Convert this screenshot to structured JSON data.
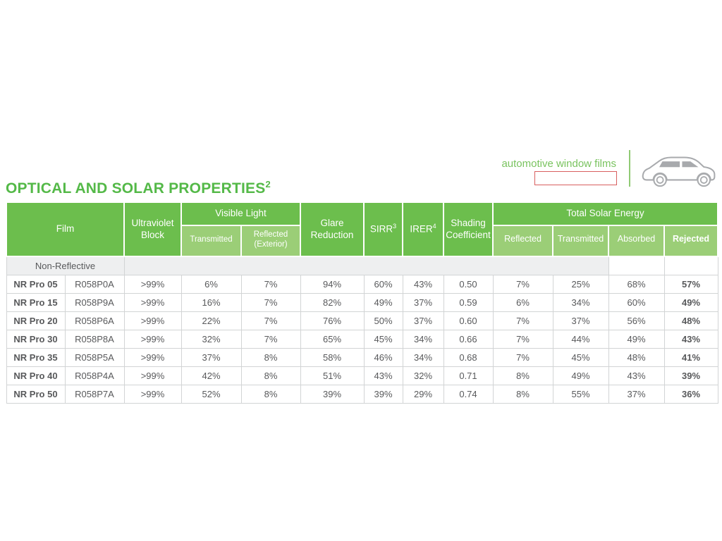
{
  "title": {
    "text": "OPTICAL AND SOLAR PROPERTIES",
    "superscript": "2"
  },
  "brand": {
    "tagline": "automotive window films",
    "car_icon": "car-side-icon",
    "redacted_box": ""
  },
  "colors": {
    "header_green": "#6cbe4d",
    "subheader_green": "#9bce77",
    "title_green": "#54b948",
    "tagline_green": "#79c35f",
    "section_gray": "#eeeff0",
    "border_gray": "#d2d4d5",
    "redacted_border_red": "#d85f5f"
  },
  "table": {
    "header": {
      "film": "Film",
      "ultraviolet_block": "Ultraviolet Block",
      "visible_light": "Visible Light",
      "vl_transmitted": "Transmitted",
      "vl_reflected": "Reflected (Exterior)",
      "glare_reduction": "Glare Reduction",
      "sirr": "SIRR",
      "sirr_sup": "3",
      "irer": "IRER",
      "irer_sup": "4",
      "shading_coefficient": "Shading Coefficient",
      "total_solar_energy": "Total Solar Energy",
      "tse_reflected": "Reflected",
      "tse_transmitted": "Transmitted",
      "tse_absorbed": "Absorbed",
      "tse_rejected": "Rejected"
    },
    "section_label": "Non-Reflective",
    "column_keys": [
      "name",
      "code",
      "uv_block",
      "vl_transmitted",
      "vl_reflected",
      "glare_reduction",
      "sirr",
      "irer",
      "shading_coefficient",
      "tse_reflected",
      "tse_transmitted",
      "tse_absorbed",
      "tse_rejected"
    ],
    "rows": [
      {
        "name": "NR Pro 05",
        "code": "R058P0A",
        "uv_block": ">99%",
        "vl_transmitted": "6%",
        "vl_reflected": "7%",
        "glare_reduction": "94%",
        "sirr": "60%",
        "irer": "43%",
        "shading_coefficient": "0.50",
        "tse_reflected": "7%",
        "tse_transmitted": "25%",
        "tse_absorbed": "68%",
        "tse_rejected": "57%"
      },
      {
        "name": "NR Pro 15",
        "code": "R058P9A",
        "uv_block": ">99%",
        "vl_transmitted": "16%",
        "vl_reflected": "7%",
        "glare_reduction": "82%",
        "sirr": "49%",
        "irer": "37%",
        "shading_coefficient": "0.59",
        "tse_reflected": "6%",
        "tse_transmitted": "34%",
        "tse_absorbed": "60%",
        "tse_rejected": "49%"
      },
      {
        "name": "NR Pro 20",
        "code": "R058P6A",
        "uv_block": ">99%",
        "vl_transmitted": "22%",
        "vl_reflected": "7%",
        "glare_reduction": "76%",
        "sirr": "50%",
        "irer": "37%",
        "shading_coefficient": "0.60",
        "tse_reflected": "7%",
        "tse_transmitted": "37%",
        "tse_absorbed": "56%",
        "tse_rejected": "48%"
      },
      {
        "name": "NR Pro 30",
        "code": "R058P8A",
        "uv_block": ">99%",
        "vl_transmitted": "32%",
        "vl_reflected": "7%",
        "glare_reduction": "65%",
        "sirr": "45%",
        "irer": "34%",
        "shading_coefficient": "0.66",
        "tse_reflected": "7%",
        "tse_transmitted": "44%",
        "tse_absorbed": "49%",
        "tse_rejected": "43%"
      },
      {
        "name": "NR Pro 35",
        "code": "R058P5A",
        "uv_block": ">99%",
        "vl_transmitted": "37%",
        "vl_reflected": "8%",
        "glare_reduction": "58%",
        "sirr": "46%",
        "irer": "34%",
        "shading_coefficient": "0.68",
        "tse_reflected": "7%",
        "tse_transmitted": "45%",
        "tse_absorbed": "48%",
        "tse_rejected": "41%"
      },
      {
        "name": "NR Pro 40",
        "code": "R058P4A",
        "uv_block": ">99%",
        "vl_transmitted": "42%",
        "vl_reflected": "8%",
        "glare_reduction": "51%",
        "sirr": "43%",
        "irer": "32%",
        "shading_coefficient": "0.71",
        "tse_reflected": "8%",
        "tse_transmitted": "49%",
        "tse_absorbed": "43%",
        "tse_rejected": "39%"
      },
      {
        "name": "NR Pro 50",
        "code": "R058P7A",
        "uv_block": ">99%",
        "vl_transmitted": "52%",
        "vl_reflected": "8%",
        "glare_reduction": "39%",
        "sirr": "39%",
        "irer": "29%",
        "shading_coefficient": "0.74",
        "tse_reflected": "8%",
        "tse_transmitted": "55%",
        "tse_absorbed": "37%",
        "tse_rejected": "36%"
      }
    ]
  }
}
